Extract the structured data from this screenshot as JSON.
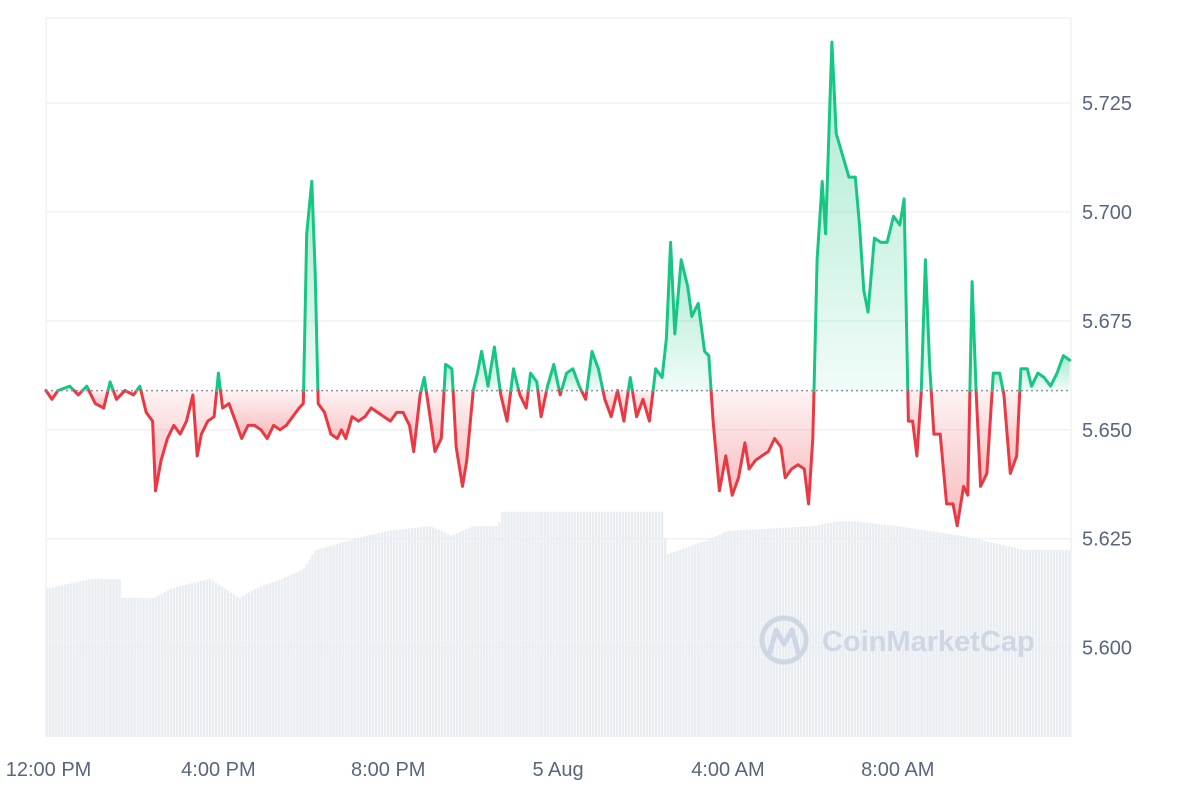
{
  "watermark": {
    "text": "CoinMarketCap"
  },
  "colors": {
    "up": "#16c784",
    "down": "#ea3943",
    "grid": "#eff2f5",
    "volume": "#e9edf2",
    "baseline": "#8a94a6"
  },
  "chart_data": {
    "type": "line",
    "title": "",
    "ylabel": "",
    "xlabel": "",
    "ylim": [
      5.5795,
      5.7445
    ],
    "y_ticks": [
      5.6,
      5.625,
      5.65,
      5.675,
      5.7,
      5.725
    ],
    "y_tick_labels": [
      "5.600",
      "5.625",
      "5.650",
      "5.675",
      "5.700",
      "5.725"
    ],
    "x_range_hours": [
      11.94,
      36.08
    ],
    "x_ticks": [
      {
        "label": "12:00 PM",
        "hour": 12
      },
      {
        "label": "4:00 PM",
        "hour": 16
      },
      {
        "label": "8:00 PM",
        "hour": 20
      },
      {
        "label": "5 Aug",
        "hour": 24
      },
      {
        "label": "4:00 AM",
        "hour": 28
      },
      {
        "label": "8:00 AM",
        "hour": 32
      }
    ],
    "baseline": 5.659,
    "grid": true,
    "series": [
      {
        "values": [
          [
            11.94,
            5.659
          ],
          [
            12.08,
            5.657
          ],
          [
            12.22,
            5.659
          ],
          [
            12.5,
            5.66
          ],
          [
            12.7,
            5.658
          ],
          [
            12.9,
            5.66
          ],
          [
            13.1,
            5.656
          ],
          [
            13.3,
            5.655
          ],
          [
            13.45,
            5.661
          ],
          [
            13.6,
            5.657
          ],
          [
            13.8,
            5.659
          ],
          [
            14.0,
            5.658
          ],
          [
            14.15,
            5.66
          ],
          [
            14.3,
            5.654
          ],
          [
            14.45,
            5.652
          ],
          [
            14.52,
            5.636
          ],
          [
            14.65,
            5.643
          ],
          [
            14.8,
            5.648
          ],
          [
            14.95,
            5.651
          ],
          [
            15.1,
            5.649
          ],
          [
            15.25,
            5.652
          ],
          [
            15.4,
            5.658
          ],
          [
            15.5,
            5.644
          ],
          [
            15.6,
            5.649
          ],
          [
            15.75,
            5.652
          ],
          [
            15.9,
            5.653
          ],
          [
            16.0,
            5.663
          ],
          [
            16.1,
            5.655
          ],
          [
            16.25,
            5.656
          ],
          [
            16.4,
            5.652
          ],
          [
            16.55,
            5.648
          ],
          [
            16.7,
            5.651
          ],
          [
            16.85,
            5.651
          ],
          [
            17.0,
            5.65
          ],
          [
            17.15,
            5.648
          ],
          [
            17.3,
            5.651
          ],
          [
            17.45,
            5.65
          ],
          [
            17.6,
            5.651
          ],
          [
            17.75,
            5.653
          ],
          [
            17.9,
            5.655
          ],
          [
            18.0,
            5.656
          ],
          [
            18.08,
            5.695
          ],
          [
            18.2,
            5.707
          ],
          [
            18.28,
            5.686
          ],
          [
            18.35,
            5.656
          ],
          [
            18.5,
            5.654
          ],
          [
            18.65,
            5.649
          ],
          [
            18.8,
            5.648
          ],
          [
            18.9,
            5.65
          ],
          [
            19.0,
            5.648
          ],
          [
            19.15,
            5.653
          ],
          [
            19.3,
            5.652
          ],
          [
            19.45,
            5.653
          ],
          [
            19.6,
            5.655
          ],
          [
            19.75,
            5.654
          ],
          [
            19.9,
            5.653
          ],
          [
            20.05,
            5.652
          ],
          [
            20.2,
            5.654
          ],
          [
            20.35,
            5.654
          ],
          [
            20.5,
            5.651
          ],
          [
            20.6,
            5.645
          ],
          [
            20.75,
            5.658
          ],
          [
            20.85,
            5.662
          ],
          [
            21.0,
            5.652
          ],
          [
            21.1,
            5.645
          ],
          [
            21.25,
            5.648
          ],
          [
            21.35,
            5.665
          ],
          [
            21.5,
            5.664
          ],
          [
            21.6,
            5.646
          ],
          [
            21.75,
            5.637
          ],
          [
            21.85,
            5.643
          ],
          [
            22.0,
            5.659
          ],
          [
            22.1,
            5.663
          ],
          [
            22.2,
            5.668
          ],
          [
            22.35,
            5.66
          ],
          [
            22.5,
            5.669
          ],
          [
            22.65,
            5.658
          ],
          [
            22.8,
            5.652
          ],
          [
            22.95,
            5.664
          ],
          [
            23.1,
            5.658
          ],
          [
            23.25,
            5.655
          ],
          [
            23.35,
            5.663
          ],
          [
            23.5,
            5.661
          ],
          [
            23.6,
            5.653
          ],
          [
            23.75,
            5.66
          ],
          [
            23.9,
            5.665
          ],
          [
            24.05,
            5.658
          ],
          [
            24.2,
            5.663
          ],
          [
            24.35,
            5.664
          ],
          [
            24.5,
            5.66
          ],
          [
            24.65,
            5.657
          ],
          [
            24.8,
            5.668
          ],
          [
            24.95,
            5.664
          ],
          [
            25.1,
            5.657
          ],
          [
            25.25,
            5.653
          ],
          [
            25.4,
            5.659
          ],
          [
            25.55,
            5.652
          ],
          [
            25.7,
            5.662
          ],
          [
            25.85,
            5.653
          ],
          [
            26.0,
            5.657
          ],
          [
            26.15,
            5.652
          ],
          [
            26.3,
            5.664
          ],
          [
            26.45,
            5.662
          ],
          [
            26.55,
            5.671
          ],
          [
            26.65,
            5.693
          ],
          [
            26.75,
            5.672
          ],
          [
            26.9,
            5.689
          ],
          [
            27.05,
            5.683
          ],
          [
            27.15,
            5.676
          ],
          [
            27.3,
            5.679
          ],
          [
            27.45,
            5.668
          ],
          [
            27.55,
            5.667
          ],
          [
            27.65,
            5.652
          ],
          [
            27.8,
            5.636
          ],
          [
            27.95,
            5.644
          ],
          [
            28.1,
            5.635
          ],
          [
            28.25,
            5.639
          ],
          [
            28.4,
            5.647
          ],
          [
            28.5,
            5.641
          ],
          [
            28.65,
            5.643
          ],
          [
            28.8,
            5.644
          ],
          [
            28.95,
            5.645
          ],
          [
            29.1,
            5.648
          ],
          [
            29.25,
            5.646
          ],
          [
            29.35,
            5.639
          ],
          [
            29.5,
            5.641
          ],
          [
            29.65,
            5.642
          ],
          [
            29.8,
            5.641
          ],
          [
            29.9,
            5.633
          ],
          [
            30.0,
            5.648
          ],
          [
            30.1,
            5.689
          ],
          [
            30.22,
            5.707
          ],
          [
            30.3,
            5.695
          ],
          [
            30.45,
            5.739
          ],
          [
            30.55,
            5.718
          ],
          [
            30.7,
            5.713
          ],
          [
            30.85,
            5.708
          ],
          [
            31.0,
            5.708
          ],
          [
            31.1,
            5.697
          ],
          [
            31.2,
            5.682
          ],
          [
            31.3,
            5.677
          ],
          [
            31.45,
            5.694
          ],
          [
            31.6,
            5.693
          ],
          [
            31.75,
            5.693
          ],
          [
            31.9,
            5.699
          ],
          [
            32.05,
            5.697
          ],
          [
            32.15,
            5.703
          ],
          [
            32.25,
            5.652
          ],
          [
            32.35,
            5.652
          ],
          [
            32.45,
            5.644
          ],
          [
            32.55,
            5.658
          ],
          [
            32.65,
            5.689
          ],
          [
            32.75,
            5.665
          ],
          [
            32.85,
            5.649
          ],
          [
            33.0,
            5.649
          ],
          [
            33.15,
            5.633
          ],
          [
            33.3,
            5.633
          ],
          [
            33.4,
            5.628
          ],
          [
            33.55,
            5.637
          ],
          [
            33.65,
            5.635
          ],
          [
            33.75,
            5.684
          ],
          [
            33.85,
            5.658
          ],
          [
            33.95,
            5.637
          ],
          [
            34.1,
            5.64
          ],
          [
            34.25,
            5.663
          ],
          [
            34.4,
            5.663
          ],
          [
            34.5,
            5.658
          ],
          [
            34.65,
            5.64
          ],
          [
            34.8,
            5.644
          ],
          [
            34.9,
            5.664
          ],
          [
            35.05,
            5.664
          ],
          [
            35.15,
            5.66
          ],
          [
            35.3,
            5.663
          ],
          [
            35.45,
            5.662
          ],
          [
            35.6,
            5.66
          ],
          [
            35.75,
            5.663
          ],
          [
            35.9,
            5.667
          ],
          [
            36.05,
            5.666
          ]
        ]
      }
    ],
    "volume": {
      "ylim": [
        0,
        150
      ],
      "values": [
        [
          11.94,
          31
        ],
        [
          12.0,
          31
        ],
        [
          12.5,
          32
        ],
        [
          13.0,
          33
        ],
        [
          13.7,
          33
        ],
        [
          13.75,
          29
        ],
        [
          14.5,
          29
        ],
        [
          14.9,
          31
        ],
        [
          15.8,
          33
        ],
        [
          16.5,
          29
        ],
        [
          16.9,
          31
        ],
        [
          17.5,
          33
        ],
        [
          18.0,
          35
        ],
        [
          18.3,
          39
        ],
        [
          19.5,
          42
        ],
        [
          20.0,
          43
        ],
        [
          21.0,
          44
        ],
        [
          21.5,
          42
        ],
        [
          22.0,
          44
        ],
        [
          22.6,
          44
        ],
        [
          22.7,
          47
        ],
        [
          24.0,
          47
        ],
        [
          26.5,
          47
        ],
        [
          26.55,
          38
        ],
        [
          27.5,
          41
        ],
        [
          28.0,
          43
        ],
        [
          30.0,
          44
        ],
        [
          30.6,
          45
        ],
        [
          31.0,
          45
        ],
        [
          32.0,
          44
        ],
        [
          33.5,
          42
        ],
        [
          34.5,
          40
        ],
        [
          35.0,
          39
        ],
        [
          35.5,
          39
        ],
        [
          36.08,
          39
        ]
      ]
    }
  }
}
